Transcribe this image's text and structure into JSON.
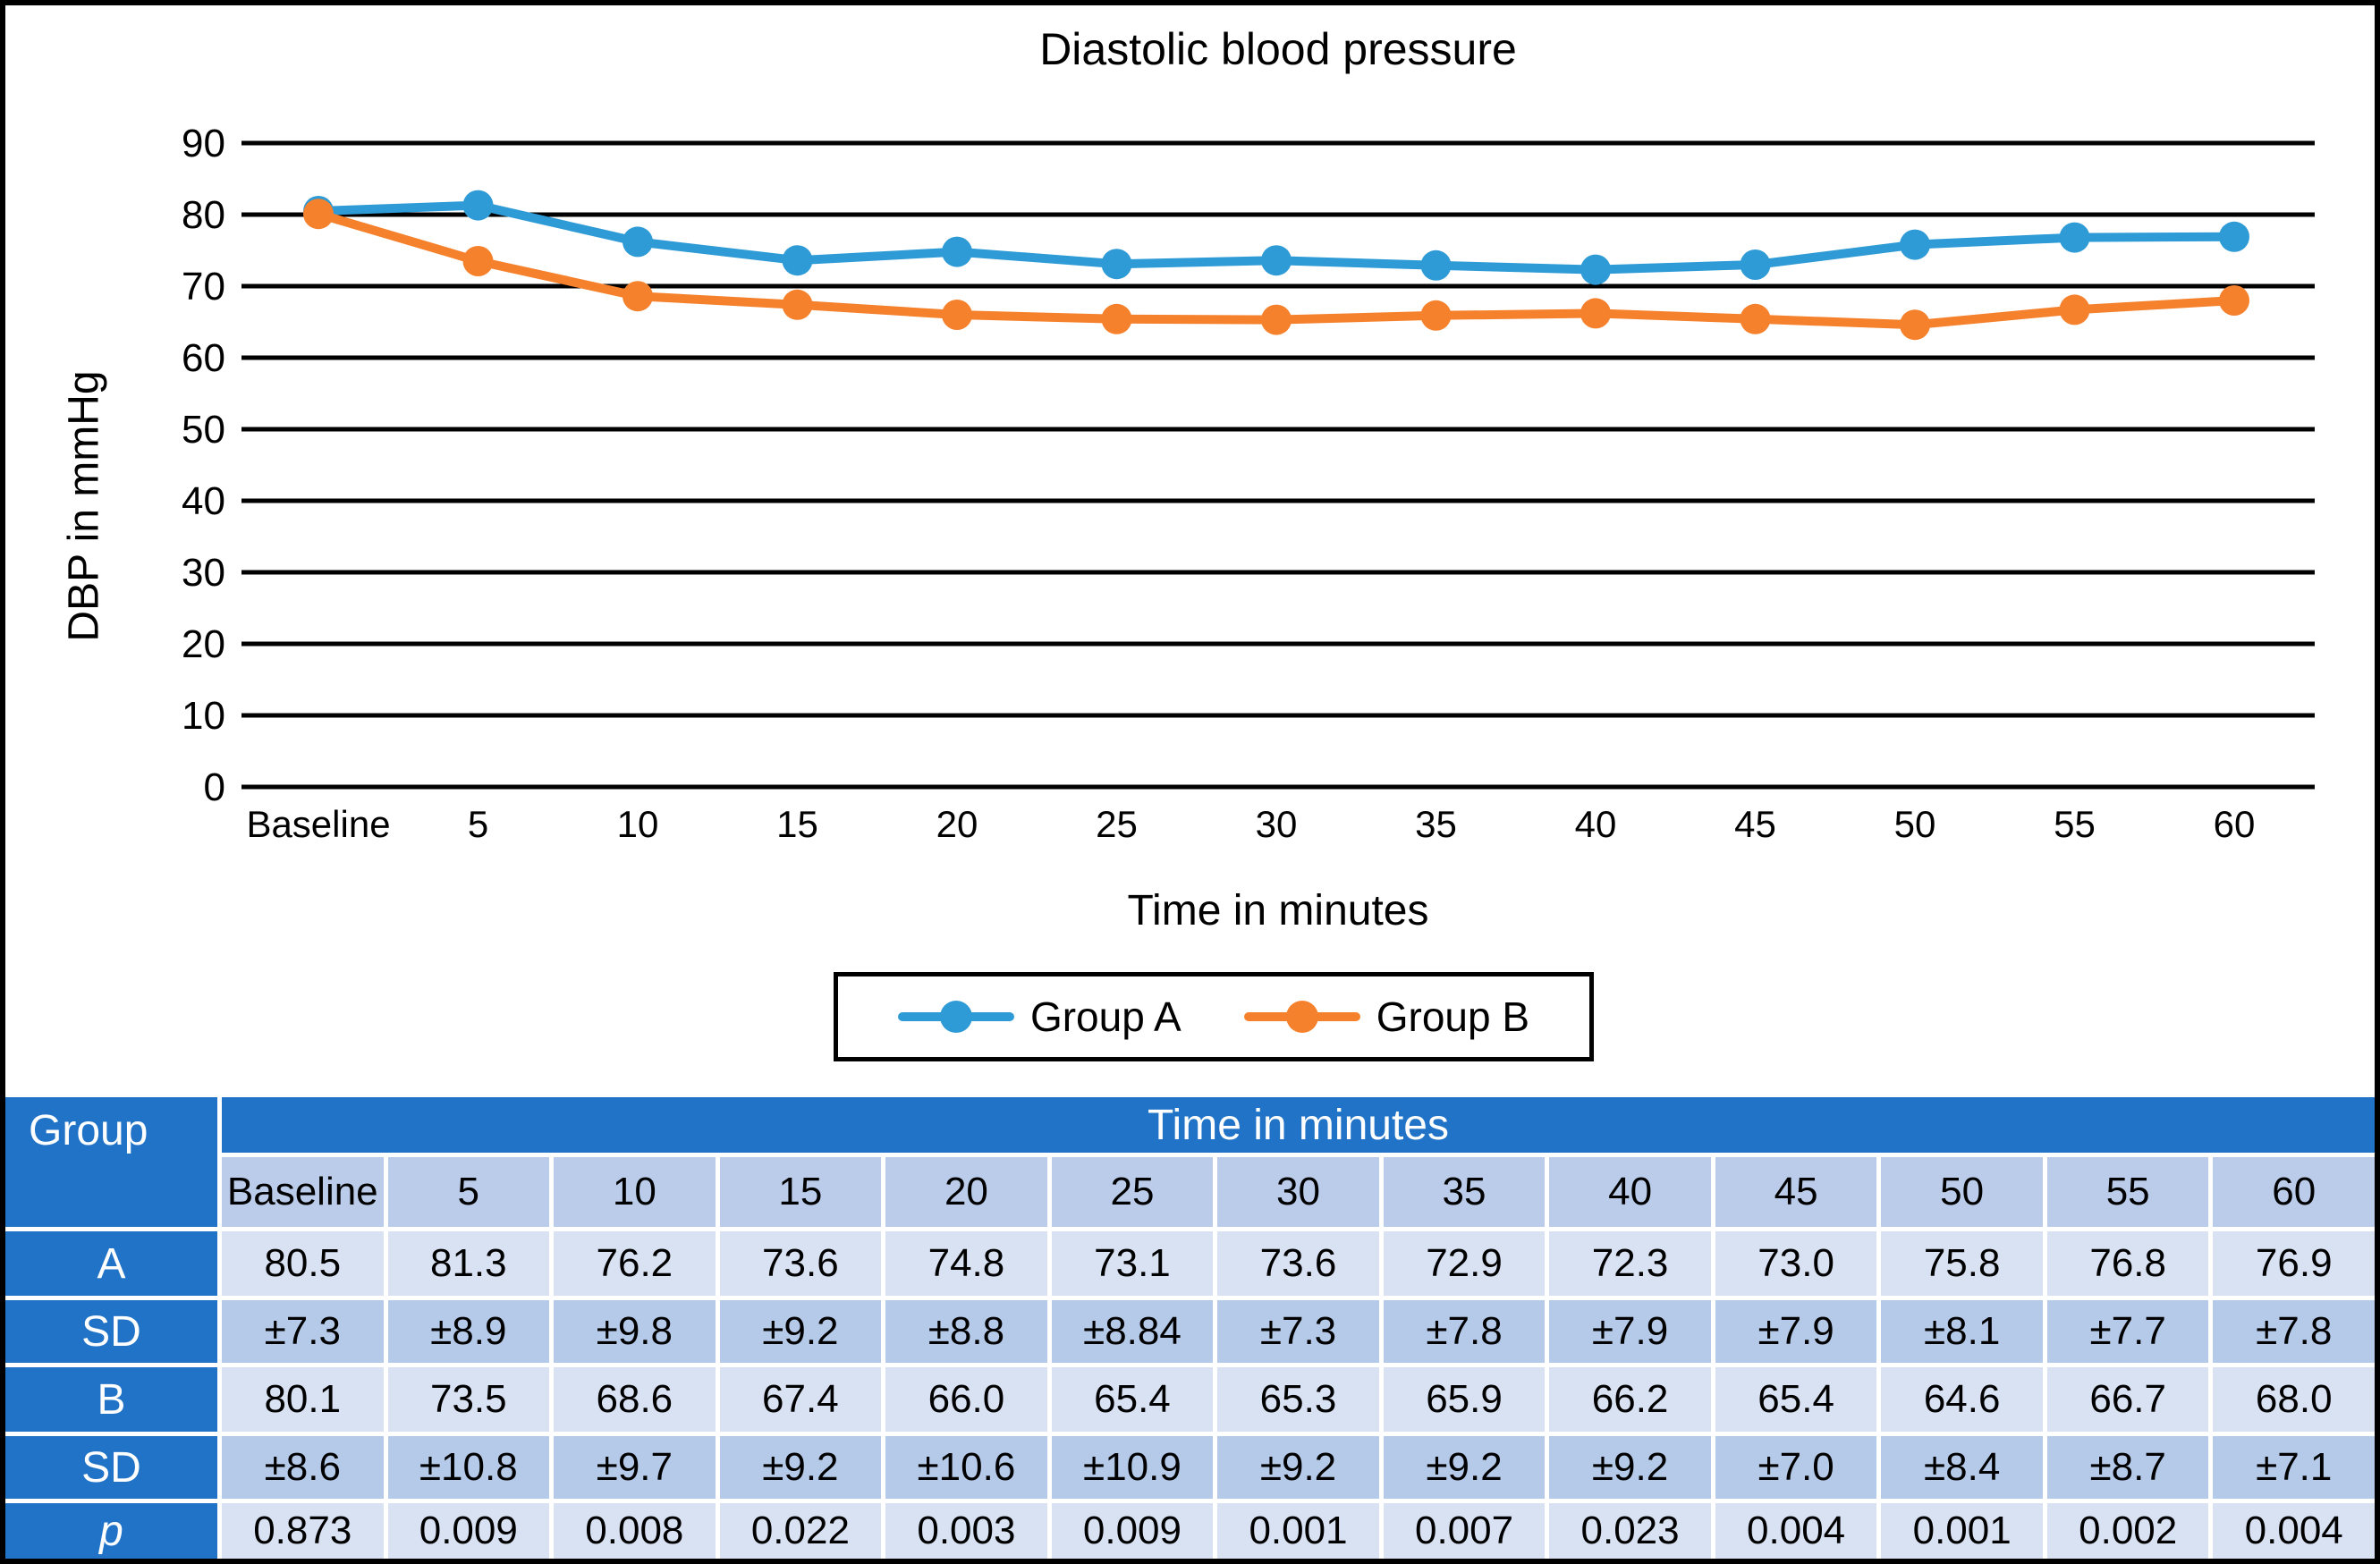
{
  "chart_data": {
    "type": "line",
    "title": "Diastolic blood pressure",
    "xlabel": "Time in minutes",
    "ylabel": "DBP in mmHg",
    "categories": [
      "Baseline",
      "5",
      "10",
      "15",
      "20",
      "25",
      "30",
      "35",
      "40",
      "45",
      "50",
      "55",
      "60"
    ],
    "yticks": [
      90,
      80,
      70,
      60,
      50,
      40,
      30,
      20,
      10,
      0
    ],
    "ylim": [
      0,
      90
    ],
    "grid": true,
    "legend_position": "bottom",
    "series": [
      {
        "name": "Group A",
        "color": "#2E9BD6",
        "values": [
          80.5,
          81.3,
          76.2,
          73.6,
          74.8,
          73.1,
          73.6,
          72.9,
          72.3,
          73.0,
          75.8,
          76.8,
          76.9
        ]
      },
      {
        "name": "Group B",
        "color": "#F5812C",
        "values": [
          80.1,
          73.5,
          68.6,
          67.4,
          66.0,
          65.4,
          65.3,
          65.9,
          66.2,
          65.4,
          64.6,
          66.7,
          68.0
        ]
      }
    ]
  },
  "table": {
    "corner_header": "Group",
    "span_header": "Time in minutes",
    "col_headers": [
      "Baseline",
      "5",
      "10",
      "15",
      "20",
      "25",
      "30",
      "35",
      "40",
      "45",
      "50",
      "55",
      "60"
    ],
    "rows": [
      {
        "label": "A",
        "italic": false,
        "band": "light",
        "cells": [
          "80.5",
          "81.3",
          "76.2",
          "73.6",
          "74.8",
          "73.1",
          "73.6",
          "72.9",
          "72.3",
          "73.0",
          "75.8",
          "76.8",
          "76.9"
        ]
      },
      {
        "label": "SD",
        "italic": false,
        "band": "dark",
        "cells": [
          "±7.3",
          "±8.9",
          "±9.8",
          "±9.2",
          "±8.8",
          "±8.84",
          "±7.3",
          "±7.8",
          "±7.9",
          "±7.9",
          "±8.1",
          "±7.7",
          "±7.8"
        ]
      },
      {
        "label": "B",
        "italic": false,
        "band": "light",
        "cells": [
          "80.1",
          "73.5",
          "68.6",
          "67.4",
          "66.0",
          "65.4",
          "65.3",
          "65.9",
          "66.2",
          "65.4",
          "64.6",
          "66.7",
          "68.0"
        ]
      },
      {
        "label": "SD",
        "italic": false,
        "band": "dark",
        "cells": [
          "±8.6",
          "±10.8",
          "±9.7",
          "±9.2",
          "±10.6",
          "±10.9",
          "±9.2",
          "±9.2",
          "±9.2",
          "±7.0",
          "±8.4",
          "±8.7",
          "±7.1"
        ]
      },
      {
        "label": "p",
        "italic": true,
        "band": "light",
        "cells": [
          "0.873",
          "0.009",
          "0.008",
          "0.022",
          "0.003",
          "0.009",
          "0.001",
          "0.007",
          "0.023",
          "0.004",
          "0.001",
          "0.002",
          "0.004"
        ]
      }
    ],
    "colors": {
      "header_bg": "#2173C8",
      "header_text": "#FFFFFF",
      "subheader_bg": "#BACCEA",
      "light_row_bg": "#D9E2F3",
      "dark_row_bg": "#B5C9E8",
      "grid_line": "#000000"
    }
  }
}
